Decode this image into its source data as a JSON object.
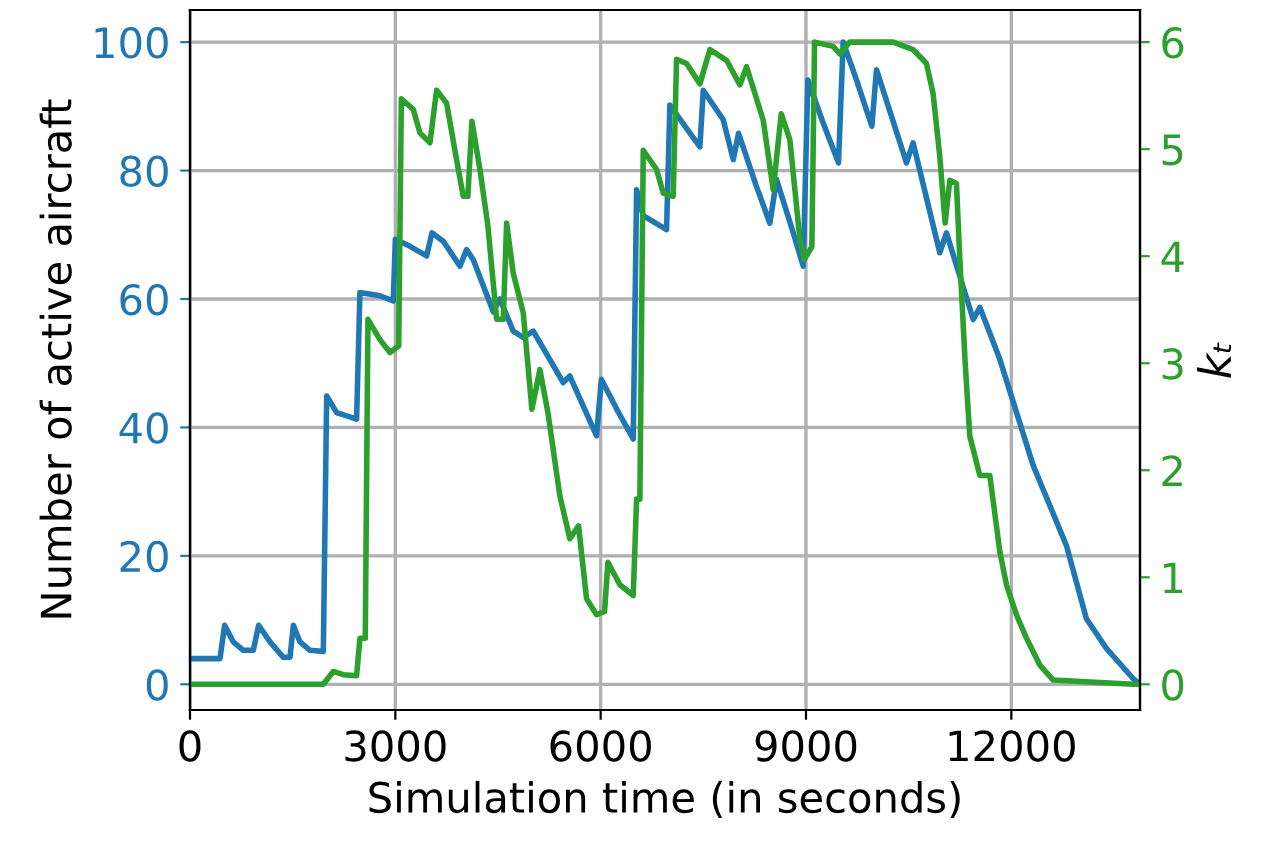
{
  "chart_data": {
    "type": "line",
    "xlabel": "Simulation time (in seconds)",
    "ylabel": "Number of active aircraft",
    "y2label": "kₜ",
    "xlim": [
      0,
      13880
    ],
    "xticks": [
      0,
      3000,
      6000,
      9000,
      12000
    ],
    "ylim": [
      -4,
      105
    ],
    "yticks": [
      0,
      20,
      40,
      60,
      80,
      100
    ],
    "y2lim": [
      -0.24,
      6.3
    ],
    "y2ticks": [
      0,
      1,
      2,
      3,
      4,
      5,
      6
    ],
    "grid": true,
    "line_style": "solid",
    "marker": "none",
    "series": [
      {
        "color": "#1f77b4",
        "x": [
          0,
          438,
          506,
          633,
          779,
          925,
          1003,
          1169,
          1363,
          1461,
          1510,
          1607,
          1753,
          1948,
          1997,
          2143,
          2434,
          2483,
          2775,
          2970,
          3000,
          3214,
          3457,
          3535,
          3700,
          3944,
          4041,
          4139,
          4431,
          4528,
          4723,
          4869,
          5015,
          5453,
          5550,
          5940,
          6010,
          6232,
          6476,
          6525,
          6622,
          6963,
          7011,
          7450,
          7499,
          7791,
          7937,
          8015,
          8277,
          8472,
          8570,
          8814,
          8960,
          9027,
          9251,
          9475,
          9543,
          9738,
          9962,
          10030,
          10468,
          10565,
          10955,
          11052,
          11443,
          11540,
          11832,
          12319,
          12805,
          13097,
          13389,
          13779,
          13877
        ],
        "values": [
          4,
          4,
          9.2,
          6.6,
          5.3,
          5.3,
          9.2,
          6.6,
          4.2,
          4.2,
          9.2,
          6.6,
          5.3,
          5.1,
          44.9,
          42.3,
          41.3,
          61,
          60.5,
          59.7,
          69.3,
          68.2,
          66.7,
          70.3,
          69,
          65.1,
          67.7,
          66.1,
          58,
          60,
          55,
          54,
          55,
          47,
          48,
          38.7,
          47.5,
          42.9,
          38.2,
          77,
          73,
          70.8,
          90.2,
          83.7,
          92.5,
          87.9,
          81.7,
          85.8,
          77.5,
          71.8,
          78.6,
          70.3,
          65.1,
          94.1,
          87.4,
          81.2,
          100,
          94.1,
          86.9,
          95.7,
          81.2,
          84.3,
          67.2,
          70.3,
          56.8,
          58.7,
          50.6,
          34.1,
          21.6,
          10.2,
          5.6,
          0.9,
          0
        ]
      },
      {
        "color": "#2ca02c",
        "axis": "y2",
        "x": [
          0,
          1948,
          2094,
          2240,
          2434,
          2483,
          2561,
          2600,
          2775,
          2921,
          3049,
          3088,
          3263,
          3360,
          3506,
          3603,
          3749,
          3895,
          3992,
          4060,
          4119,
          4236,
          4353,
          4480,
          4577,
          4626,
          4723,
          4869,
          4995,
          5112,
          5229,
          5404,
          5550,
          5677,
          5794,
          5940,
          6057,
          6106,
          6281,
          6476,
          6525,
          6573,
          6622,
          6817,
          6914,
          7060,
          7109,
          7255,
          7450,
          7596,
          7840,
          8034,
          8132,
          8375,
          8521,
          8638,
          8764,
          8910,
          8978,
          9086,
          9125,
          9397,
          9494,
          9640,
          10078,
          10273,
          10565,
          10760,
          10857,
          10955,
          11033,
          11101,
          11198,
          11248,
          11325,
          11393,
          11540,
          11686,
          11832,
          11929,
          12075,
          12222,
          12416,
          12611,
          13779,
          13877
        ],
        "values": [
          0,
          0,
          0.12,
          0.09,
          0.08,
          0.43,
          0.43,
          3.41,
          3.22,
          3.1,
          3.16,
          5.47,
          5.37,
          5.15,
          5.06,
          5.55,
          5.43,
          4.9,
          4.56,
          4.56,
          5.26,
          4.81,
          4.28,
          3.41,
          3.41,
          4.31,
          3.84,
          3.47,
          2.57,
          2.94,
          2.54,
          1.76,
          1.36,
          1.48,
          0.8,
          0.65,
          0.68,
          1.14,
          0.93,
          0.83,
          1.73,
          1.73,
          4.99,
          4.81,
          4.59,
          4.56,
          5.84,
          5.8,
          5.61,
          5.93,
          5.83,
          5.6,
          5.77,
          5.27,
          4.62,
          5.33,
          5.09,
          4.16,
          3.97,
          4.09,
          6,
          5.96,
          5.89,
          6,
          6,
          6,
          5.93,
          5.8,
          5.52,
          4.93,
          4.31,
          4.71,
          4.68,
          3.97,
          3.01,
          2.32,
          1.95,
          1.95,
          1.24,
          0.93,
          0.65,
          0.43,
          0.18,
          0.04,
          0,
          0
        ]
      }
    ]
  }
}
